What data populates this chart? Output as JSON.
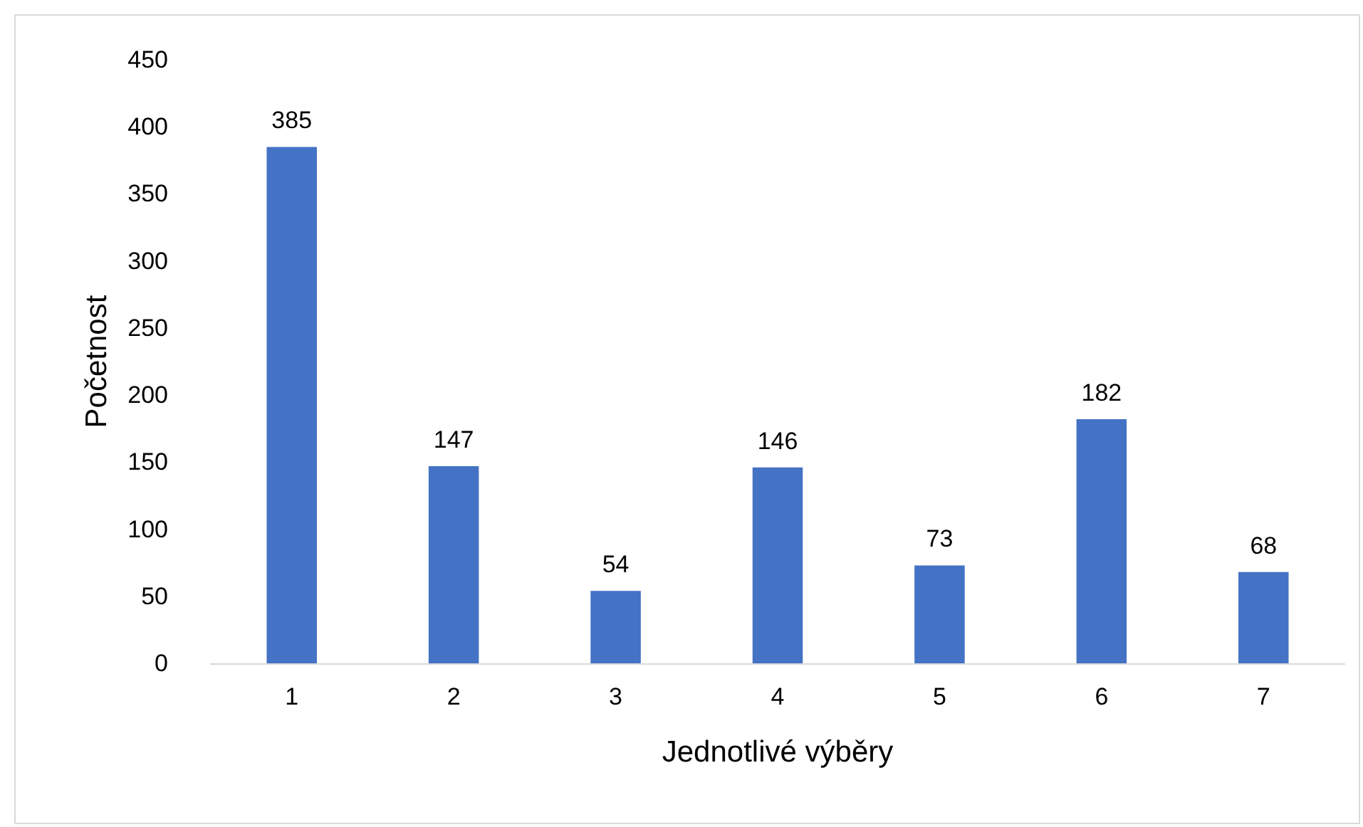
{
  "chart_data": {
    "type": "bar",
    "xlabel": "Jednotlivé výběry",
    "ylabel": "Početnost",
    "categories": [
      "1",
      "2",
      "3",
      "4",
      "5",
      "6",
      "7"
    ],
    "values": [
      385,
      147,
      54,
      146,
      73,
      182,
      68
    ],
    "color": "#4472c4",
    "ylim": [
      0,
      450
    ],
    "yticks": [
      0,
      50,
      100,
      150,
      200,
      250,
      300,
      350,
      400,
      450
    ],
    "grid": false,
    "data_labels": true
  }
}
